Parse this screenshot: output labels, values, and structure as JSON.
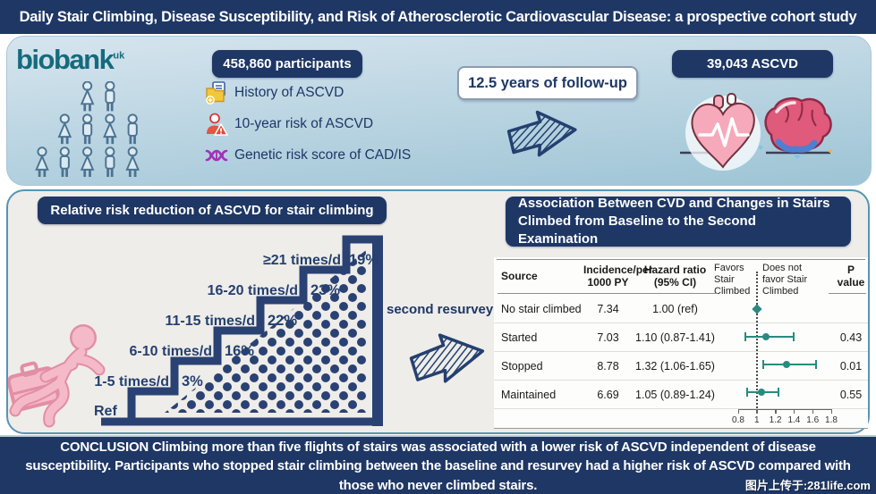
{
  "title": "Daily Stair Climbing, Disease Susceptibility, and Risk of Atherosclerotic Cardiovascular Disease: a prospective cohort study",
  "top_panel": {
    "logo_text": "biobank",
    "logo_sup": "uk",
    "participants_label": "458,860 participants",
    "items": [
      {
        "icon": "document-folder-icon",
        "label": "History of ASCVD"
      },
      {
        "icon": "person-warning-icon",
        "label": "10-year risk of ASCVD"
      },
      {
        "icon": "dna-icon",
        "label": "Genetic risk score of CAD/IS"
      }
    ],
    "followup_label": "12.5 years of follow-up",
    "outcome_label": "39,043 ASCVD"
  },
  "stair_panel": {
    "title": "Relative risk reduction of ASCVD for stair climbing",
    "ref_label": "Ref",
    "resurvey_label": "second resurvey",
    "steps": [
      {
        "label": "1-5 times/d",
        "pct": "3%"
      },
      {
        "label": "6-10 times/d",
        "pct": "16%"
      },
      {
        "label": "11-15 times/d",
        "pct": "22%"
      },
      {
        "label": "16-20 times/d",
        "pct": "23%"
      },
      {
        "label": "≥21 times/d",
        "pct": "19%"
      }
    ]
  },
  "forest_panel": {
    "title": "Association Between CVD and Changes in Stairs Climbed from Baseline to the Second Examination",
    "table": {
      "header": {
        "source": "Source",
        "incidence_l1": "Incidence/per",
        "incidence_l2": "1000 PY",
        "hr_l1": "Hazard ratio",
        "hr_l2": "(95% CI)",
        "favors_l1": "Favors",
        "favors_l2": "Stair",
        "favors_l3": "Climbed",
        "notfavor_l1": "Does not",
        "notfavor_l2": "favor Stair",
        "notfavor_l3": "Climbed",
        "p": "P value"
      },
      "rows": [
        {
          "source": "No stair climbed",
          "incidence": "7.34",
          "hr": "1.00 (ref)",
          "p": "",
          "est": 1.0,
          "lo": 1.0,
          "hi": 1.0
        },
        {
          "source": "Started",
          "incidence": "7.03",
          "hr": "1.10 (0.87-1.41)",
          "p": "0.43",
          "est": 1.1,
          "lo": 0.87,
          "hi": 1.41
        },
        {
          "source": "Stopped",
          "incidence": "8.78",
          "hr": "1.32 (1.06-1.65)",
          "p": "0.01",
          "est": 1.32,
          "lo": 1.06,
          "hi": 1.65
        },
        {
          "source": "Maintained",
          "incidence": "6.69",
          "hr": "1.05 (0.89-1.24)",
          "p": "0.55",
          "est": 1.05,
          "lo": 0.89,
          "hi": 1.24
        }
      ],
      "axis_ticks": [
        "0.8",
        "1",
        "1.2",
        "1.4",
        "1.6",
        "1.8"
      ],
      "axis_values": [
        0.8,
        1,
        1.2,
        1.4,
        1.6,
        1.8
      ],
      "axis_min": 0.8,
      "axis_max": 1.8,
      "reference_value": 1.0
    }
  },
  "conclusion": "CONCLUSION Climbing more than five flights of stairs was associated with a lower risk of ASCVD  independent of disease susceptibility. Participants who stopped stair climbing between the baseline and resurvey had a higher risk of ASCVD compared with those who never climbed stairs.",
  "watermark": "图片上传于:281life.com",
  "colors": {
    "navy": "#1e3765",
    "marker_teal": "#2a8a80",
    "logo_teal": "#156b7d"
  },
  "chart_data": [
    {
      "type": "bar",
      "title": "Relative risk reduction of ASCVD for stair climbing",
      "categories": [
        "1-5 times/d",
        "6-10 times/d",
        "11-15 times/d",
        "16-20 times/d",
        "≥21 times/d"
      ],
      "values": [
        3,
        16,
        22,
        23,
        19
      ],
      "baseline": "Ref",
      "ylabel": "Relative risk reduction (%)"
    },
    {
      "type": "scatter",
      "title": "Association Between CVD and Changes in Stairs Climbed from Baseline to the Second Examination",
      "categories": [
        "No stair climbed",
        "Started",
        "Stopped",
        "Maintained"
      ],
      "series": [
        {
          "name": "Hazard ratio",
          "values": [
            1.0,
            1.1,
            1.32,
            1.05
          ]
        },
        {
          "name": "CI lower",
          "values": [
            1.0,
            0.87,
            1.06,
            0.89
          ]
        },
        {
          "name": "CI upper",
          "values": [
            1.0,
            1.41,
            1.65,
            1.24
          ]
        },
        {
          "name": "Incidence per 1000 PY",
          "values": [
            7.34,
            7.03,
            8.78,
            6.69
          ]
        },
        {
          "name": "P value",
          "values": [
            null,
            0.43,
            0.01,
            0.55
          ]
        }
      ],
      "xlim": [
        0.8,
        1.8
      ],
      "reference_line": 1.0,
      "axis_ticks": [
        0.8,
        1,
        1.2,
        1.4,
        1.6,
        1.8
      ]
    }
  ]
}
